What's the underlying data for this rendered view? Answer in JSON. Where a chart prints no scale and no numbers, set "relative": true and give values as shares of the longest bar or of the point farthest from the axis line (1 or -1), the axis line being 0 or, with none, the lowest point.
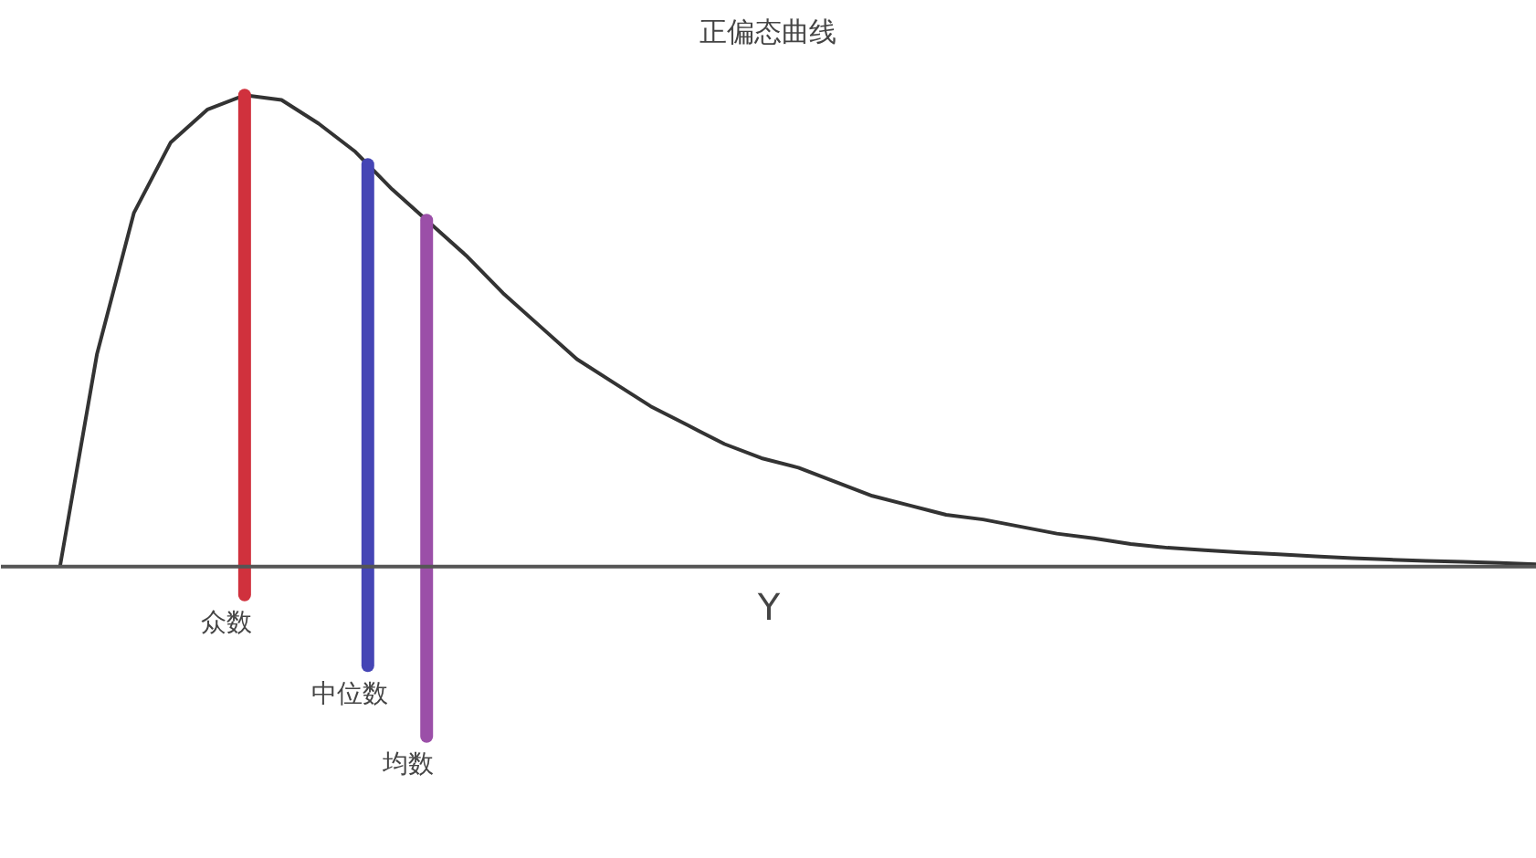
{
  "chart_data": {
    "type": "line",
    "title": "正偏态曲线",
    "xlabel": "Y",
    "relative": true,
    "grid": false,
    "marker": "none",
    "line_style": "solid",
    "categories": [
      null,
      null,
      null,
      null,
      null,
      null,
      null,
      null,
      null,
      null,
      null,
      null,
      null,
      null,
      null,
      null,
      null,
      null,
      null,
      null,
      null,
      null,
      null,
      null,
      null,
      null,
      null,
      null,
      null,
      null,
      null,
      null,
      null,
      null,
      null,
      null,
      null,
      null,
      null,
      null,
      null
    ],
    "series": [
      {
        "color": "#333333",
        "values": [
          0,
          0.45,
          0.75,
          0.9,
          0.97,
          1.0,
          0.99,
          0.94,
          0.88,
          0.8,
          0.73,
          0.66,
          0.58,
          0.51,
          0.44,
          0.39,
          0.34,
          0.3,
          0.26,
          0.23,
          0.21,
          0.18,
          0.15,
          0.13,
          0.11,
          0.1,
          0.085,
          0.07,
          0.06,
          0.048,
          0.04,
          0.035,
          0.03,
          0.026,
          0.022,
          0.018,
          0.015,
          0.012,
          0.01,
          0.008,
          0.005
        ]
      }
    ],
    "annotations": [
      "众数",
      "中位数",
      "均数"
    ]
  }
}
